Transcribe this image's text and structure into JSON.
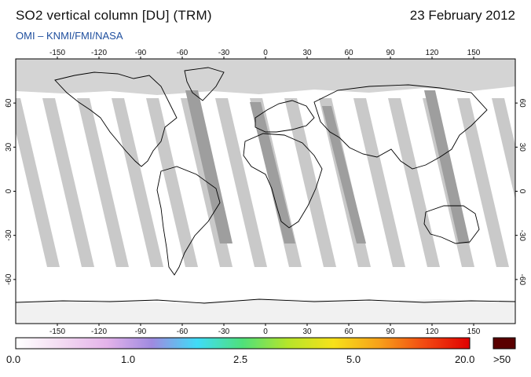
{
  "header": {
    "title": "SO2 vertical column [DU] (TRM)",
    "date": "23 February 2012",
    "subtitle": "OMI  –  KNMI/FMI/NASA"
  },
  "map": {
    "lon_ticks": [
      -150,
      -120,
      -90,
      -60,
      -30,
      0,
      30,
      60,
      90,
      120,
      150
    ],
    "lat_ticks": [
      60,
      30,
      0,
      -30,
      -60
    ],
    "lon_range": [
      -180,
      180
    ],
    "lat_range": [
      -90,
      90
    ],
    "colors": {
      "no_data": "#d4d4d4",
      "orbit_gap": "#c9c9c9",
      "orbit_dark": "#9e9e9e",
      "background": "#ffffff",
      "coast": "#000000"
    }
  },
  "colorbar": {
    "labels": [
      "0.0",
      "1.0",
      "2.5",
      "5.0",
      "20.0",
      ">50"
    ],
    "overflow_color": "#5a0000",
    "gradient": [
      "#ffffff",
      "#f3dbf2",
      "#e4b3ea",
      "#9f8ae0",
      "#3fdcf7",
      "#4fe07a",
      "#b6e52a",
      "#f7e11a",
      "#f7a11a",
      "#f24a12",
      "#e00000"
    ]
  }
}
